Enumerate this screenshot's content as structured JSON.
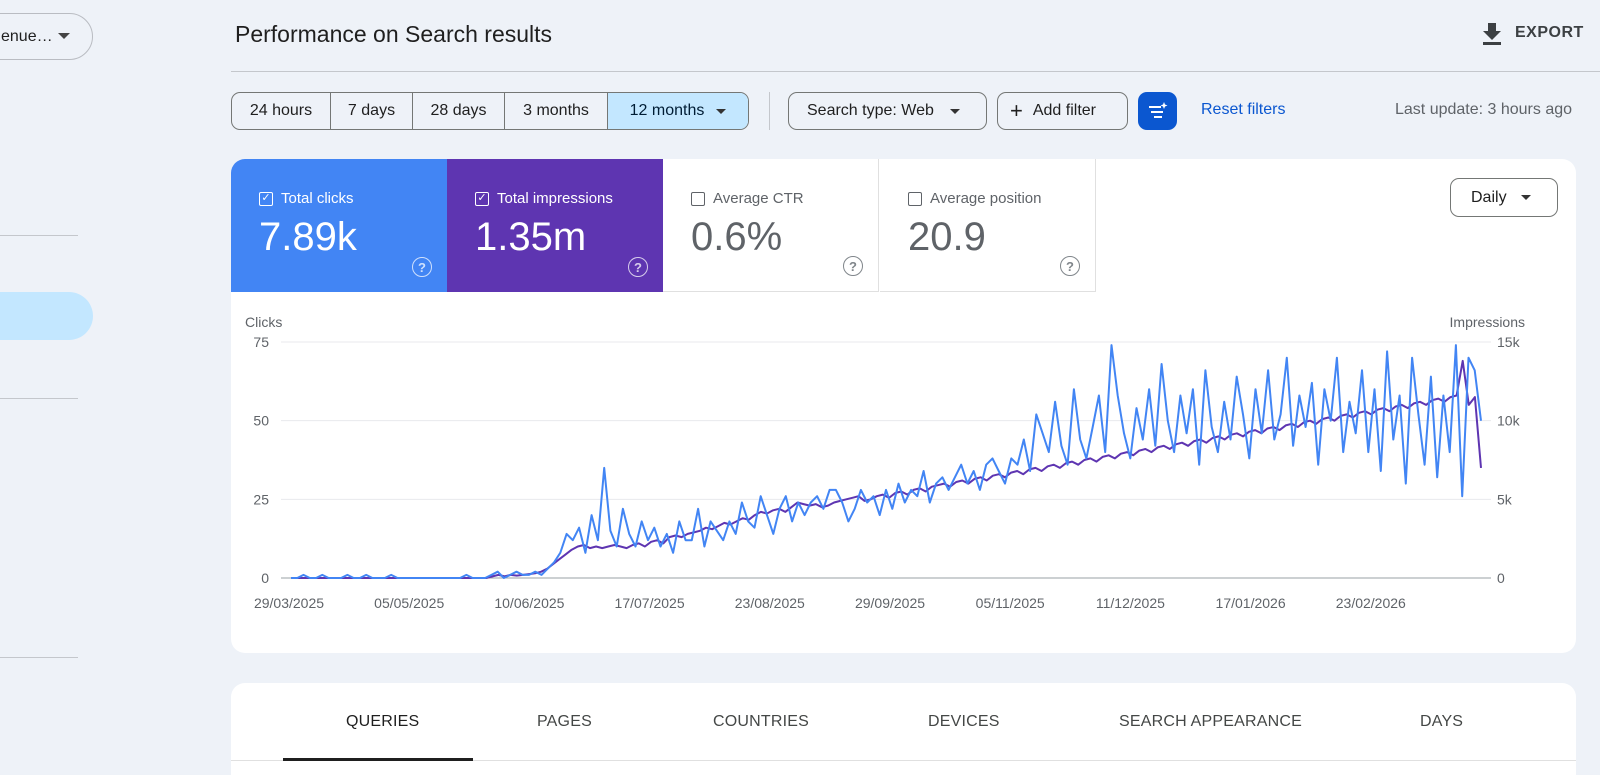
{
  "sidebar": {
    "property_select": "enue…"
  },
  "header": {
    "title": "Performance on Search results",
    "export_label": "EXPORT"
  },
  "filters": {
    "ranges": [
      "24 hours",
      "7 days",
      "28 days",
      "3 months",
      "12 months"
    ],
    "selected_range": "12 months",
    "search_type": "Search type: Web",
    "add_filter": "Add filter",
    "reset": "Reset filters",
    "last_update": "Last update: 3 hours ago"
  },
  "metrics": {
    "clicks": {
      "label": "Total clicks",
      "value": "7.89k",
      "checked": true,
      "color": "#4285f4"
    },
    "impressions": {
      "label": "Total impressions",
      "value": "1.35m",
      "checked": true,
      "color": "#5e35b1"
    },
    "ctr": {
      "label": "Average CTR",
      "value": "0.6%",
      "checked": false
    },
    "position": {
      "label": "Average position",
      "value": "20.9",
      "checked": false
    }
  },
  "granularity": "Daily",
  "chart_data": {
    "type": "line",
    "left_axis_label": "Clicks",
    "right_axis_label": "Impressions",
    "left_ticks": [
      "0",
      "25",
      "50",
      "75"
    ],
    "right_ticks": [
      "0",
      "5k",
      "10k",
      "15k"
    ],
    "left_range": [
      0,
      75
    ],
    "right_range": [
      0,
      15000
    ],
    "x_ticks": [
      "29/03/2025",
      "05/05/2025",
      "10/06/2025",
      "17/07/2025",
      "23/08/2025",
      "29/09/2025",
      "05/11/2025",
      "11/12/2025",
      "17/01/2026",
      "23/02/2026"
    ],
    "series": [
      {
        "name": "Clicks",
        "axis": "left",
        "color": "#4285f4",
        "values": [
          0,
          0,
          1,
          0,
          0,
          1,
          0,
          0,
          0,
          1,
          0,
          0,
          1,
          0,
          0,
          0,
          1,
          0,
          0,
          0,
          0,
          0,
          0,
          0,
          0,
          0,
          0,
          0,
          1,
          0,
          0,
          0,
          1,
          2,
          0,
          1,
          2,
          1,
          1,
          2,
          1,
          3,
          5,
          8,
          14,
          12,
          16,
          8,
          20,
          12,
          35,
          15,
          10,
          22,
          14,
          10,
          18,
          12,
          16,
          10,
          14,
          8,
          18,
          12,
          12,
          22,
          10,
          18,
          15,
          12,
          18,
          14,
          24,
          18,
          16,
          26,
          20,
          14,
          22,
          26,
          18,
          24,
          20,
          24,
          26,
          22,
          28,
          28,
          24,
          18,
          22,
          28,
          24,
          26,
          20,
          28,
          22,
          30,
          24,
          28,
          26,
          34,
          24,
          30,
          32,
          28,
          32,
          36,
          30,
          34,
          28,
          36,
          38,
          34,
          30,
          38,
          36,
          44,
          34,
          52,
          46,
          40,
          56,
          42,
          36,
          60,
          44,
          38,
          48,
          58,
          40,
          74,
          58,
          46,
          38,
          54,
          44,
          60,
          42,
          68,
          50,
          40,
          58,
          46,
          60,
          36,
          66,
          48,
          40,
          56,
          44,
          64,
          52,
          38,
          60,
          46,
          66,
          44,
          52,
          70,
          42,
          58,
          48,
          62,
          36,
          60,
          50,
          70,
          40,
          56,
          46,
          66,
          40,
          60,
          34,
          72,
          44,
          58,
          30,
          70,
          52,
          36,
          64,
          32,
          58,
          40,
          74,
          26,
          70,
          66,
          50
        ]
      },
      {
        "name": "Impressions",
        "axis": "right",
        "color": "#5e35b1",
        "values": [
          0,
          0,
          0,
          0,
          0,
          0,
          0,
          0,
          0,
          0,
          0,
          0,
          0,
          0,
          0,
          0,
          0,
          0,
          0,
          0,
          0,
          0,
          0,
          0,
          0,
          0,
          0,
          0,
          0,
          0,
          0,
          0,
          0,
          100,
          200,
          100,
          200,
          150,
          200,
          250,
          300,
          400,
          600,
          900,
          1200,
          1500,
          1800,
          2000,
          2100,
          1900,
          2000,
          1900,
          2000,
          2100,
          2000,
          1900,
          2100,
          2200,
          2000,
          2300,
          2400,
          2200,
          2600,
          2700,
          2600,
          2800,
          2900,
          3000,
          3200,
          3100,
          3300,
          3500,
          3400,
          3600,
          3800,
          3700,
          4000,
          4200,
          4100,
          4300,
          4400,
          4200,
          4500,
          4800,
          4700,
          4600,
          4700,
          4500,
          4600,
          4800,
          4900,
          5000,
          5100,
          5200,
          4900,
          5000,
          5200,
          5300,
          5100,
          5400,
          5500,
          5300,
          5600,
          5700,
          5500,
          5800,
          5900,
          6000,
          5800,
          6100,
          6200,
          6000,
          6300,
          6400,
          6200,
          6500,
          6600,
          6400,
          6700,
          6800,
          6600,
          6900,
          7000,
          6800,
          7100,
          7200,
          7000,
          7300,
          7400,
          7200,
          7500,
          7600,
          7400,
          7700,
          7800,
          7600,
          7900,
          8000,
          7800,
          8100,
          8200,
          8000,
          8300,
          8400,
          8200,
          8500,
          8600,
          8400,
          8700,
          8800,
          8600,
          8900,
          9000,
          8800,
          9100,
          9200,
          9000,
          9300,
          9400,
          9200,
          9500,
          9600,
          9400,
          9700,
          9800,
          9600,
          9900,
          10000,
          9800,
          10100,
          10200,
          10000,
          10300,
          10400,
          10200,
          10500,
          10600,
          10400,
          10700,
          10800,
          10600,
          10900,
          11000,
          10800,
          11100,
          11200,
          11000,
          11300,
          11400,
          11200,
          11500,
          11600,
          13800,
          11000,
          11500,
          7000
        ]
      }
    ]
  },
  "tabs": [
    "QUERIES",
    "PAGES",
    "COUNTRIES",
    "DEVICES",
    "SEARCH APPEARANCE",
    "DAYS"
  ],
  "active_tab": "QUERIES"
}
